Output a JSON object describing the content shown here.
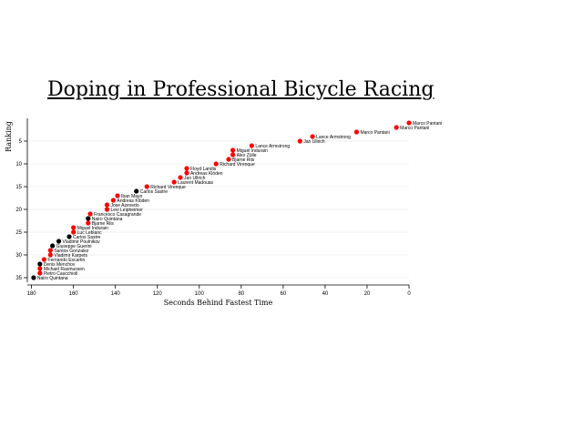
{
  "chart_data": {
    "type": "scatter",
    "title": "Doping in Professional Bicycle Racing",
    "xlabel": "Seconds Behind Fastest Time",
    "ylabel": "Ranking",
    "xlim": [
      182,
      0
    ],
    "ylim": [
      0,
      36
    ],
    "x_ticks": [
      180,
      160,
      140,
      120,
      100,
      80,
      60,
      40,
      20,
      0
    ],
    "y_ticks": [
      5,
      10,
      15,
      20,
      25,
      30,
      35
    ],
    "grid": true,
    "colors": {
      "doping": "#ff0000",
      "clean": "#000000"
    },
    "points": [
      {
        "rank": 1,
        "seconds": 0,
        "name": "Marco Pantani",
        "doping": true
      },
      {
        "rank": 2,
        "seconds": 6,
        "name": "Marco Pantani",
        "doping": true
      },
      {
        "rank": 3,
        "seconds": 25,
        "name": "Marco Pantani",
        "doping": true
      },
      {
        "rank": 4,
        "seconds": 46,
        "name": "Lance Armstrong",
        "doping": true
      },
      {
        "rank": 5,
        "seconds": 52,
        "name": "Jan Ullrich",
        "doping": true
      },
      {
        "rank": 6,
        "seconds": 75,
        "name": "Lance Armstrong",
        "doping": true
      },
      {
        "rank": 7,
        "seconds": 84,
        "name": "Miguel Indurain",
        "doping": true
      },
      {
        "rank": 8,
        "seconds": 84,
        "name": "Alex Zülle",
        "doping": true
      },
      {
        "rank": 9,
        "seconds": 86,
        "name": "Bjarne Riis",
        "doping": true
      },
      {
        "rank": 10,
        "seconds": 92,
        "name": "Richard Virenque",
        "doping": true
      },
      {
        "rank": 11,
        "seconds": 106,
        "name": "Floyd Landis",
        "doping": true
      },
      {
        "rank": 12,
        "seconds": 106,
        "name": "Andreas Klöden",
        "doping": true
      },
      {
        "rank": 13,
        "seconds": 109,
        "name": "Jan Ullrich",
        "doping": true
      },
      {
        "rank": 14,
        "seconds": 112,
        "name": "Laurent Madouas",
        "doping": true
      },
      {
        "rank": 15,
        "seconds": 125,
        "name": "Richard Virenque",
        "doping": true
      },
      {
        "rank": 16,
        "seconds": 130,
        "name": "Carlos Sastre",
        "doping": false
      },
      {
        "rank": 17,
        "seconds": 139,
        "name": "Iban Mayo",
        "doping": true
      },
      {
        "rank": 18,
        "seconds": 141,
        "name": "Andreas Klöden",
        "doping": true
      },
      {
        "rank": 19,
        "seconds": 144,
        "name": "Jose Azevedo",
        "doping": true
      },
      {
        "rank": 20,
        "seconds": 144,
        "name": "Levi Leipheimer",
        "doping": true
      },
      {
        "rank": 21,
        "seconds": 152,
        "name": "Francesco Casagrande",
        "doping": true
      },
      {
        "rank": 22,
        "seconds": 153,
        "name": "Nairo Quintana",
        "doping": false
      },
      {
        "rank": 23,
        "seconds": 153,
        "name": "Bjarne Riis",
        "doping": true
      },
      {
        "rank": 24,
        "seconds": 160,
        "name": "Miguel Indurain",
        "doping": true
      },
      {
        "rank": 25,
        "seconds": 160,
        "name": "Luc Leblanc",
        "doping": true
      },
      {
        "rank": 26,
        "seconds": 162,
        "name": "Carlos Sastre",
        "doping": false
      },
      {
        "rank": 27,
        "seconds": 167,
        "name": "Vladimir Poulnikov",
        "doping": false
      },
      {
        "rank": 28,
        "seconds": 170,
        "name": "Giuseppe Guerini",
        "doping": false
      },
      {
        "rank": 29,
        "seconds": 171,
        "name": "Santos Gonzalez",
        "doping": true
      },
      {
        "rank": 30,
        "seconds": 171,
        "name": "Vladimir Karpets",
        "doping": true
      },
      {
        "rank": 31,
        "seconds": 174,
        "name": "Fernando Escartin",
        "doping": true
      },
      {
        "rank": 32,
        "seconds": 176,
        "name": "Denis Menchov",
        "doping": false
      },
      {
        "rank": 33,
        "seconds": 176,
        "name": "Michael Rasmussen",
        "doping": true
      },
      {
        "rank": 34,
        "seconds": 176,
        "name": "Pietro Caucchioli",
        "doping": true
      },
      {
        "rank": 35,
        "seconds": 179,
        "name": "Nairo Quintana",
        "doping": false
      }
    ]
  }
}
